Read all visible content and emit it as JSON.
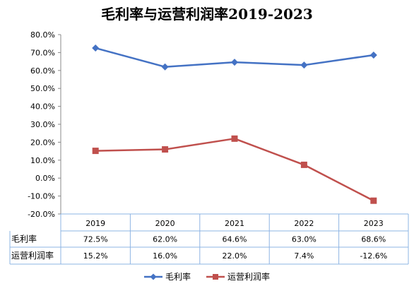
{
  "chart_data": {
    "type": "line",
    "title": "毛利率与运营利润率2019-2023",
    "categories": [
      "2019",
      "2020",
      "2021",
      "2022",
      "2023"
    ],
    "series": [
      {
        "name": "毛利率",
        "values": [
          72.5,
          62.0,
          64.6,
          63.0,
          68.6
        ],
        "labels": [
          "72.5%",
          "62.0%",
          "64.6%",
          "63.0%",
          "68.6%"
        ],
        "color": "#4472C4",
        "marker": "diamond"
      },
      {
        "name": "运营利润率",
        "values": [
          15.2,
          16.0,
          22.0,
          7.4,
          -12.6
        ],
        "labels": [
          "15.2%",
          "16.0%",
          "22.0%",
          "7.4%",
          "-12.6%"
        ],
        "color": "#C0504D",
        "marker": "square"
      }
    ],
    "ylim": [
      -20,
      80
    ],
    "yticks": [
      "80.0%",
      "70.0%",
      "60.0%",
      "50.0%",
      "40.0%",
      "30.0%",
      "20.0%",
      "10.0%",
      "0.0%",
      "-10.0%",
      "-20.0%"
    ],
    "yunit": "%",
    "grid": false,
    "data_table": true,
    "legend_position": "bottom",
    "colors": {
      "grid_table": "#8EB4E3",
      "axis": "#888888"
    }
  }
}
